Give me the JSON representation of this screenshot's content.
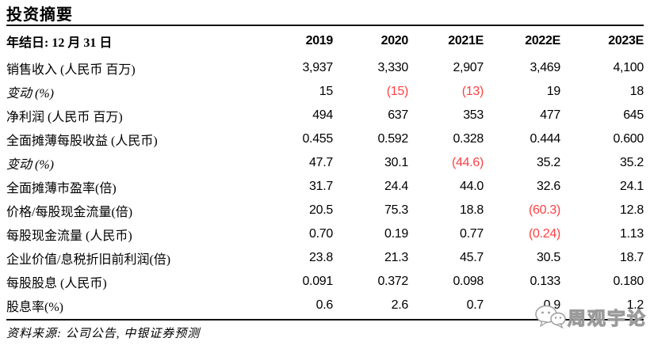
{
  "page": {
    "title": "投资摘要",
    "source_note": "资料来源: 公司公告, 中银证券预测",
    "watermark": "周观宇论"
  },
  "colors": {
    "negative_value": "#ff4043",
    "text": "#000000",
    "rule": "#111111"
  },
  "icons": {
    "watermark_icon": "wechat-bubbles-icon"
  },
  "table": {
    "header": {
      "label": "年结日: 12 月 31 日",
      "columns": [
        "2019",
        "2020",
        "2021E",
        "2022E",
        "2023E"
      ]
    },
    "rows": [
      {
        "label": "销售收入 (人民币 百万)",
        "italic": false,
        "values": [
          "3,937",
          "3,330",
          "2,907",
          "3,469",
          "4,100"
        ]
      },
      {
        "label": "变动 (%)",
        "italic": true,
        "values": [
          "15",
          "(15)",
          "(13)",
          "19",
          "18"
        ]
      },
      {
        "label": "净利润 (人民币 百万)",
        "italic": false,
        "values": [
          "494",
          "637",
          "353",
          "477",
          "645"
        ]
      },
      {
        "label": "全面摊薄每股收益 (人民币)",
        "italic": false,
        "values": [
          "0.455",
          "0.592",
          "0.328",
          "0.444",
          "0.600"
        ]
      },
      {
        "label": "变动 (%)",
        "italic": true,
        "values": [
          "47.7",
          "30.1",
          "(44.6)",
          "35.2",
          "35.2"
        ]
      },
      {
        "label": "全面摊薄市盈率(倍)",
        "italic": false,
        "values": [
          "31.7",
          "24.4",
          "44.0",
          "32.6",
          "24.1"
        ]
      },
      {
        "label": "价格/每股现金流量(倍)",
        "italic": false,
        "values": [
          "20.5",
          "75.3",
          "18.8",
          "(60.3)",
          "12.8"
        ]
      },
      {
        "label": "每股现金流量 (人民币)",
        "italic": false,
        "values": [
          "0.70",
          "0.19",
          "0.77",
          "(0.24)",
          "1.13"
        ]
      },
      {
        "label": "企业价值/息税折旧前利润(倍)",
        "italic": false,
        "values": [
          "23.8",
          "21.3",
          "45.7",
          "30.5",
          "18.7"
        ]
      },
      {
        "label": "每股股息 (人民币)",
        "italic": false,
        "values": [
          "0.091",
          "0.372",
          "0.098",
          "0.133",
          "0.180"
        ]
      },
      {
        "label": "股息率(%)",
        "italic": false,
        "values": [
          "0.6",
          "2.6",
          "0.7",
          "0.9",
          "1.2"
        ]
      }
    ]
  },
  "chart_data": {
    "type": "table",
    "title": "投资摘要",
    "columns": [
      "2019",
      "2020",
      "2021E",
      "2022E",
      "2023E"
    ],
    "rows": [
      {
        "metric": "销售收入 (人民币 百万)",
        "values": [
          3937,
          3330,
          2907,
          3469,
          4100
        ]
      },
      {
        "metric": "变动 (%)",
        "values": [
          15,
          -15,
          -13,
          19,
          18
        ]
      },
      {
        "metric": "净利润 (人民币 百万)",
        "values": [
          494,
          637,
          353,
          477,
          645
        ]
      },
      {
        "metric": "全面摊薄每股收益 (人民币)",
        "values": [
          0.455,
          0.592,
          0.328,
          0.444,
          0.6
        ]
      },
      {
        "metric": "变动 (%)",
        "values": [
          47.7,
          30.1,
          -44.6,
          35.2,
          35.2
        ]
      },
      {
        "metric": "全面摊薄市盈率(倍)",
        "values": [
          31.7,
          24.4,
          44.0,
          32.6,
          24.1
        ]
      },
      {
        "metric": "价格/每股现金流量(倍)",
        "values": [
          20.5,
          75.3,
          18.8,
          -60.3,
          12.8
        ]
      },
      {
        "metric": "每股现金流量 (人民币)",
        "values": [
          0.7,
          0.19,
          0.77,
          -0.24,
          1.13
        ]
      },
      {
        "metric": "企业价值/息税折旧前利润(倍)",
        "values": [
          23.8,
          21.3,
          45.7,
          30.5,
          18.7
        ]
      },
      {
        "metric": "每股股息 (人民币)",
        "values": [
          0.091,
          0.372,
          0.098,
          0.133,
          0.18
        ]
      },
      {
        "metric": "股息率(%)",
        "values": [
          0.6,
          2.6,
          0.7,
          0.9,
          1.2
        ]
      }
    ]
  }
}
